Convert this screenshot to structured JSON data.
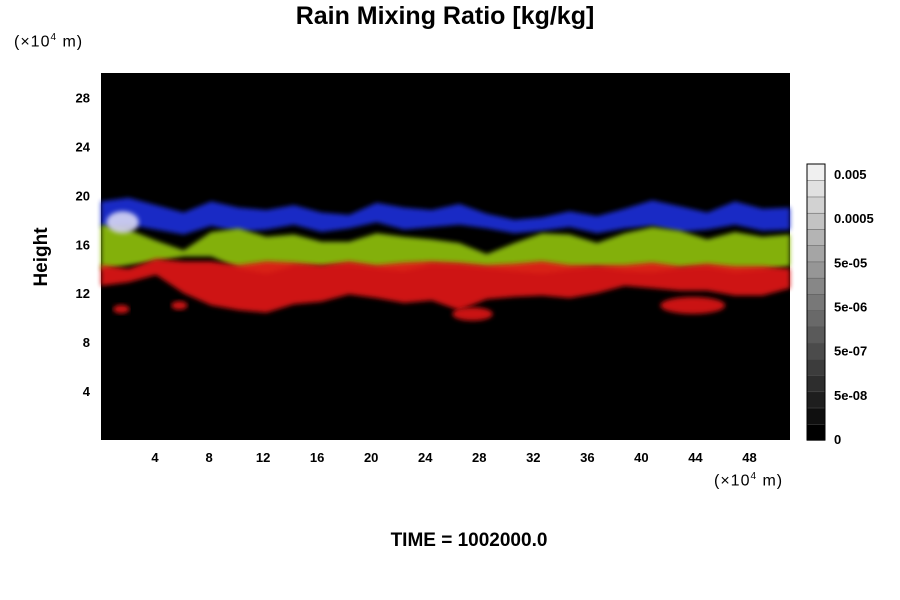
{
  "chart_data": {
    "type": "heatmap",
    "title": "Rain Mixing Ratio [kg/kg]",
    "ylabel": "Height",
    "xunit": "(×10",
    "xunit_exp": "4",
    "xunit_tail": " m)",
    "yunit": "(×10",
    "yunit_exp": "4",
    "yunit_tail": " m)",
    "time_label": "TIME = 1002000.0",
    "xlim": [
      0,
      51
    ],
    "ylim": [
      0,
      30
    ],
    "x_ticks": [
      "4",
      "8",
      "12",
      "16",
      "20",
      "24",
      "28",
      "32",
      "36",
      "40",
      "44",
      "48"
    ],
    "y_ticks": [
      "4",
      "8",
      "12",
      "16",
      "20",
      "24",
      "28"
    ],
    "colorbar_labels": [
      "0",
      "5e-08",
      "5e-07",
      "5e-06",
      "5e-05",
      "0.0005",
      "0.005"
    ],
    "layers": [
      {
        "color": "#1a2fd6",
        "top": [
          19.5,
          19.8,
          19.2,
          18.6,
          19.5,
          19.0,
          18.8,
          19.2,
          18.6,
          18.4,
          19.4,
          19.0,
          18.8,
          19.3,
          18.5,
          18.0,
          18.2,
          18.7,
          18.3,
          18.9,
          19.6,
          19.1,
          18.6,
          19.5,
          18.9,
          19.0
        ],
        "bottom": [
          17.4,
          17.6,
          17.2,
          16.8,
          17.5,
          17.0,
          17.2,
          17.6,
          17.0,
          17.3,
          17.8,
          17.2,
          17.4,
          17.6,
          17.3,
          16.9,
          17.1,
          17.4,
          16.9,
          17.3,
          17.5,
          17.0,
          17.2,
          17.6,
          17.1,
          17.2
        ]
      },
      {
        "color": "#8fbf10",
        "top": [
          17.6,
          17.2,
          16.3,
          15.5,
          17.0,
          17.3,
          16.6,
          16.8,
          16.2,
          16.2,
          16.9,
          16.6,
          16.4,
          16.1,
          15.2,
          16.1,
          16.9,
          16.8,
          16.1,
          16.9,
          17.4,
          17.1,
          16.4,
          17.0,
          16.6,
          16.8
        ],
        "bottom": [
          13.9,
          14.3,
          14.6,
          15.0,
          15.0,
          14.0,
          13.6,
          14.2,
          14.2,
          14.3,
          14.0,
          13.8,
          14.3,
          14.2,
          14.0,
          13.8,
          13.6,
          13.9,
          14.1,
          13.8,
          13.7,
          14.0,
          14.1,
          13.7,
          13.9,
          14.2
        ]
      },
      {
        "color": "#e01414",
        "top": [
          14.3,
          14.0,
          14.8,
          14.6,
          14.6,
          14.3,
          14.6,
          14.5,
          14.3,
          14.6,
          14.3,
          14.5,
          14.6,
          14.5,
          14.3,
          14.4,
          14.6,
          14.3,
          14.3,
          14.3,
          14.5,
          14.2,
          14.4,
          14.2,
          14.2,
          14.0
        ],
        "bottom": [
          12.6,
          12.9,
          13.5,
          12.0,
          11.0,
          10.6,
          10.4,
          11.1,
          11.3,
          11.9,
          11.6,
          11.2,
          11.4,
          10.6,
          11.5,
          11.7,
          11.8,
          11.6,
          12.0,
          12.6,
          12.4,
          12.2,
          12.2,
          11.8,
          11.8,
          12.4
        ]
      }
    ],
    "blobs": [
      {
        "color": "#e01414",
        "cx": 1.5,
        "cy": 10.7,
        "rx": 0.6,
        "ry": 0.35
      },
      {
        "color": "#e01414",
        "cx": 5.8,
        "cy": 11.0,
        "rx": 0.6,
        "ry": 0.35
      },
      {
        "color": "#e01414",
        "cx": 27.5,
        "cy": 10.3,
        "rx": 1.5,
        "ry": 0.55
      },
      {
        "color": "#e01414",
        "cx": 43.8,
        "cy": 11.0,
        "rx": 2.4,
        "ry": 0.7
      },
      {
        "color": "#d8d8f4",
        "cx": 1.6,
        "cy": 17.8,
        "rx": 1.2,
        "ry": 0.9
      }
    ]
  }
}
